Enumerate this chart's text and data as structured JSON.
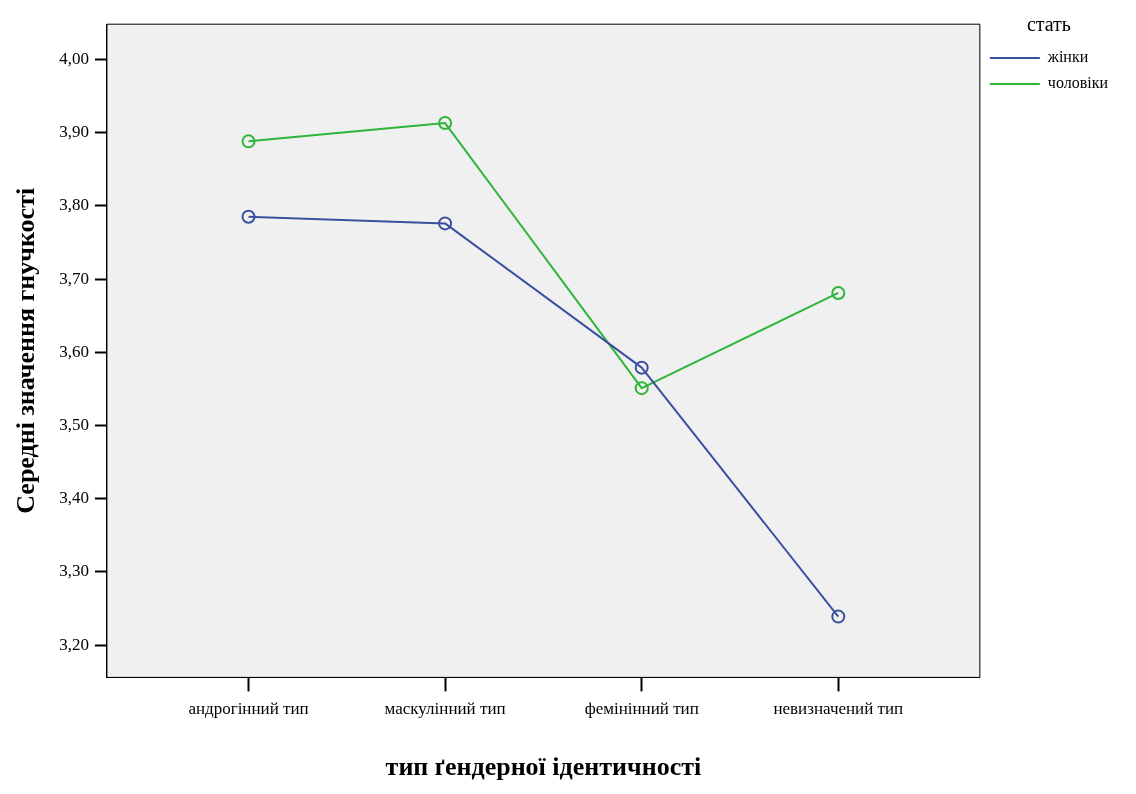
{
  "chart_data": {
    "type": "line",
    "xlabel": "тип ґендерної ідентичності",
    "ylabel": "Середні значення гнучкості",
    "legend_title": "стать",
    "categories": [
      "андрогінний тип",
      "маскулінний тип",
      "фемінінний тип",
      "невизначений тип"
    ],
    "series": [
      {
        "name": "жінки",
        "color": "#3a4fa0",
        "values": [
          3.785,
          3.776,
          3.579,
          3.239
        ]
      },
      {
        "name": "чоловіки",
        "color": "#2eb53a",
        "values": [
          3.888,
          3.913,
          3.551,
          3.681
        ]
      }
    ],
    "ylim": [
      3.156,
      4.048
    ],
    "yticks": [
      {
        "value": 3.2,
        "label": "3,20"
      },
      {
        "value": 3.3,
        "label": "3,30"
      },
      {
        "value": 3.4,
        "label": "3,40"
      },
      {
        "value": 3.5,
        "label": "3,50"
      },
      {
        "value": 3.6,
        "label": "3,60"
      },
      {
        "value": 3.7,
        "label": "3,70"
      },
      {
        "value": 3.8,
        "label": "3,80"
      },
      {
        "value": 3.9,
        "label": "3,90"
      },
      {
        "value": 4.0,
        "label": "4,00"
      }
    ],
    "grid": false,
    "legend": "right",
    "marker": "circle",
    "line_style": "solid"
  }
}
